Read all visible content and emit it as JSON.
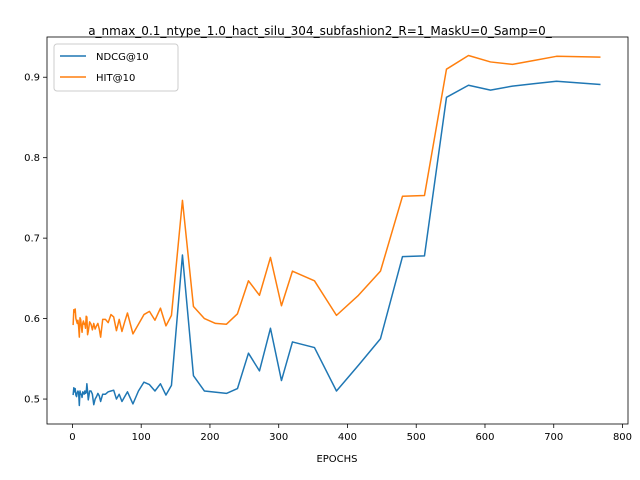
{
  "chart_data": {
    "type": "line",
    "title": "a_nmax_0.1_ntype_1.0_hact_silu_304_subfashion2_R=1_MaskU=0_Samp=0_",
    "xlabel": "EPOCHS",
    "ylabel": "",
    "xlim": [
      -37,
      808
    ],
    "ylim": [
      0.469,
      0.95
    ],
    "xticks": [
      0,
      100,
      200,
      300,
      400,
      500,
      600,
      700,
      800
    ],
    "yticks": [
      0.5,
      0.6,
      0.7,
      0.8,
      0.9
    ],
    "ytick_labels": [
      "0.5",
      "0.6",
      "0.7",
      "0.8",
      "0.9"
    ],
    "grid": false,
    "legend_position": "top-left",
    "series": [
      {
        "name": "NDCG@10",
        "color": "#1f77b4",
        "x": [
          1,
          2,
          3,
          4,
          5,
          6,
          7,
          8,
          9,
          10,
          11,
          12,
          13,
          14,
          15,
          16,
          17,
          18,
          19,
          20,
          21,
          22,
          23,
          24,
          25,
          27,
          29,
          31,
          33,
          35,
          37,
          39,
          41,
          44,
          48,
          52,
          56,
          60,
          64,
          68,
          72,
          76,
          80,
          88,
          96,
          104,
          112,
          120,
          128,
          136,
          144,
          160,
          176,
          192,
          224,
          240,
          256,
          272,
          288,
          304,
          320,
          352,
          384,
          416,
          448,
          480,
          512,
          544,
          576,
          608,
          640,
          672,
          704,
          768
        ],
        "y": [
          0.505,
          0.514,
          0.509,
          0.513,
          0.505,
          0.503,
          0.508,
          0.51,
          0.508,
          0.492,
          0.51,
          0.506,
          0.506,
          0.502,
          0.509,
          0.508,
          0.506,
          0.51,
          0.507,
          0.508,
          0.519,
          0.51,
          0.499,
          0.504,
          0.51,
          0.51,
          0.506,
          0.493,
          0.5,
          0.503,
          0.507,
          0.504,
          0.497,
          0.506,
          0.506,
          0.509,
          0.51,
          0.511,
          0.5,
          0.506,
          0.497,
          0.503,
          0.509,
          0.494,
          0.51,
          0.521,
          0.518,
          0.51,
          0.519,
          0.505,
          0.517,
          0.679,
          0.529,
          0.51,
          0.507,
          0.513,
          0.557,
          0.535,
          0.588,
          0.523,
          0.571,
          0.564,
          0.51,
          0.542,
          0.575,
          0.677,
          0.678,
          0.875,
          0.89,
          0.884,
          0.889,
          0.892,
          0.895,
          0.891
        ]
      },
      {
        "name": "HIT@10",
        "color": "#ff7f0e",
        "x": [
          1,
          2,
          3,
          4,
          5,
          6,
          7,
          8,
          9,
          10,
          11,
          12,
          13,
          14,
          15,
          16,
          17,
          18,
          19,
          20,
          21,
          22,
          23,
          24,
          25,
          27,
          29,
          31,
          33,
          35,
          37,
          39,
          41,
          44,
          48,
          52,
          56,
          60,
          64,
          68,
          72,
          76,
          80,
          88,
          96,
          104,
          112,
          120,
          128,
          136,
          144,
          160,
          176,
          192,
          208,
          224,
          240,
          256,
          272,
          288,
          304,
          320,
          352,
          384,
          416,
          448,
          480,
          512,
          544,
          576,
          608,
          640,
          672,
          704,
          768
        ],
        "y": [
          0.592,
          0.611,
          0.608,
          0.612,
          0.6,
          0.597,
          0.594,
          0.598,
          0.59,
          0.577,
          0.601,
          0.599,
          0.59,
          0.583,
          0.594,
          0.597,
          0.593,
          0.594,
          0.588,
          0.603,
          0.602,
          0.58,
          0.584,
          0.59,
          0.596,
          0.593,
          0.586,
          0.594,
          0.587,
          0.591,
          0.594,
          0.587,
          0.577,
          0.599,
          0.599,
          0.595,
          0.605,
          0.602,
          0.585,
          0.599,
          0.584,
          0.596,
          0.607,
          0.581,
          0.593,
          0.605,
          0.609,
          0.598,
          0.613,
          0.591,
          0.604,
          0.747,
          0.615,
          0.6,
          0.594,
          0.593,
          0.606,
          0.647,
          0.629,
          0.676,
          0.616,
          0.659,
          0.647,
          0.604,
          0.629,
          0.659,
          0.752,
          0.753,
          0.91,
          0.927,
          0.919,
          0.916,
          0.921,
          0.926,
          0.925
        ]
      }
    ]
  }
}
